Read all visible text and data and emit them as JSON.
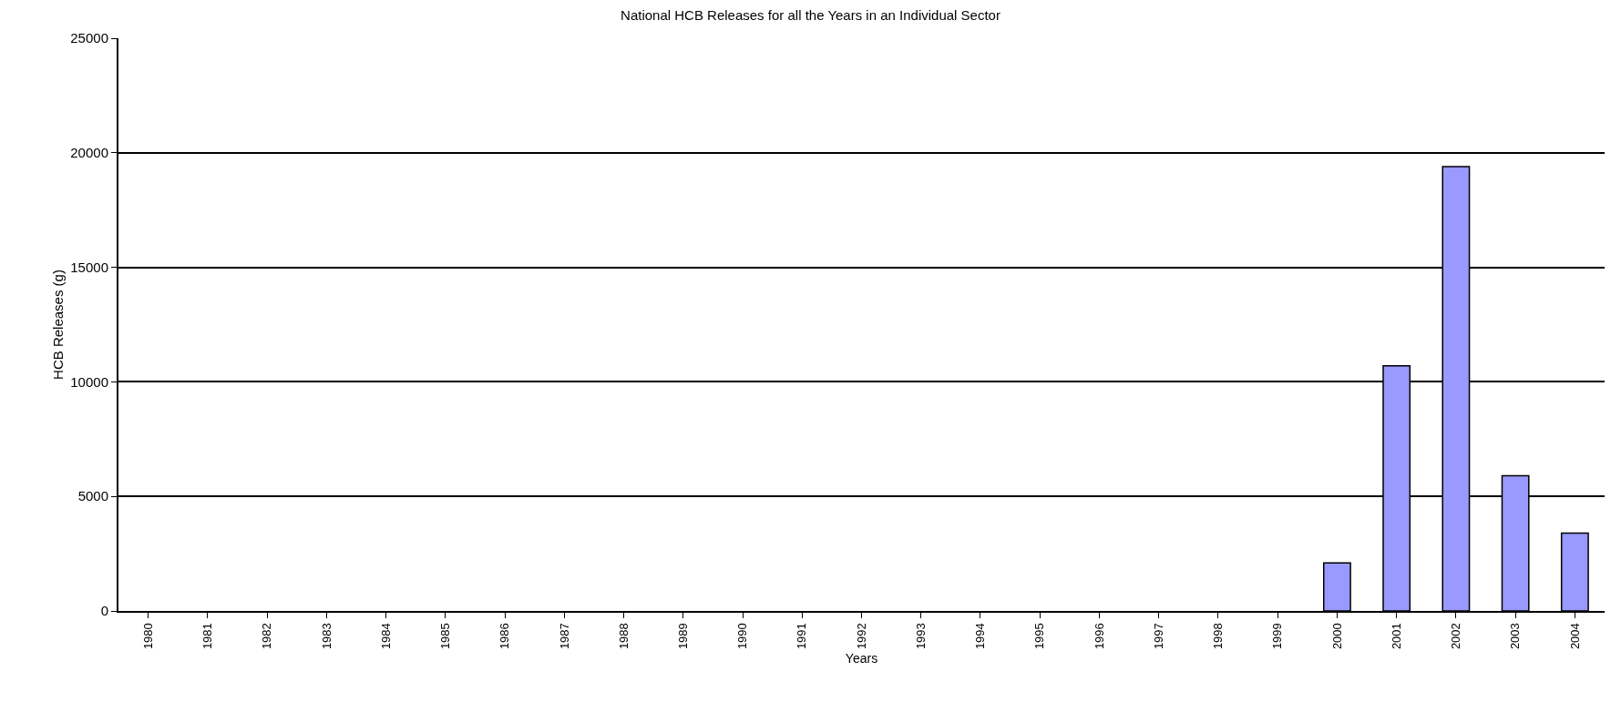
{
  "chart_data": {
    "type": "bar",
    "title": "National HCB Releases for all the Years in an Individual Sector",
    "xlabel": "Years",
    "ylabel": "HCB Releases (g)",
    "categories": [
      "1980",
      "1981",
      "1982",
      "1983",
      "1984",
      "1985",
      "1986",
      "1987",
      "1988",
      "1989",
      "1990",
      "1991",
      "1992",
      "1993",
      "1994",
      "1995",
      "1996",
      "1997",
      "1998",
      "1999",
      "2000",
      "2001",
      "2002",
      "2003",
      "2004"
    ],
    "values": [
      0,
      0,
      0,
      0,
      0,
      0,
      0,
      0,
      0,
      0,
      0,
      0,
      0,
      0,
      0,
      0,
      0,
      0,
      0,
      0,
      2100,
      10700,
      19400,
      5900,
      3400
    ],
    "color": "#9999ff",
    "ylim": [
      0,
      25000
    ],
    "yticks": [
      0,
      5000,
      10000,
      15000,
      20000,
      25000
    ],
    "grid": "y"
  }
}
